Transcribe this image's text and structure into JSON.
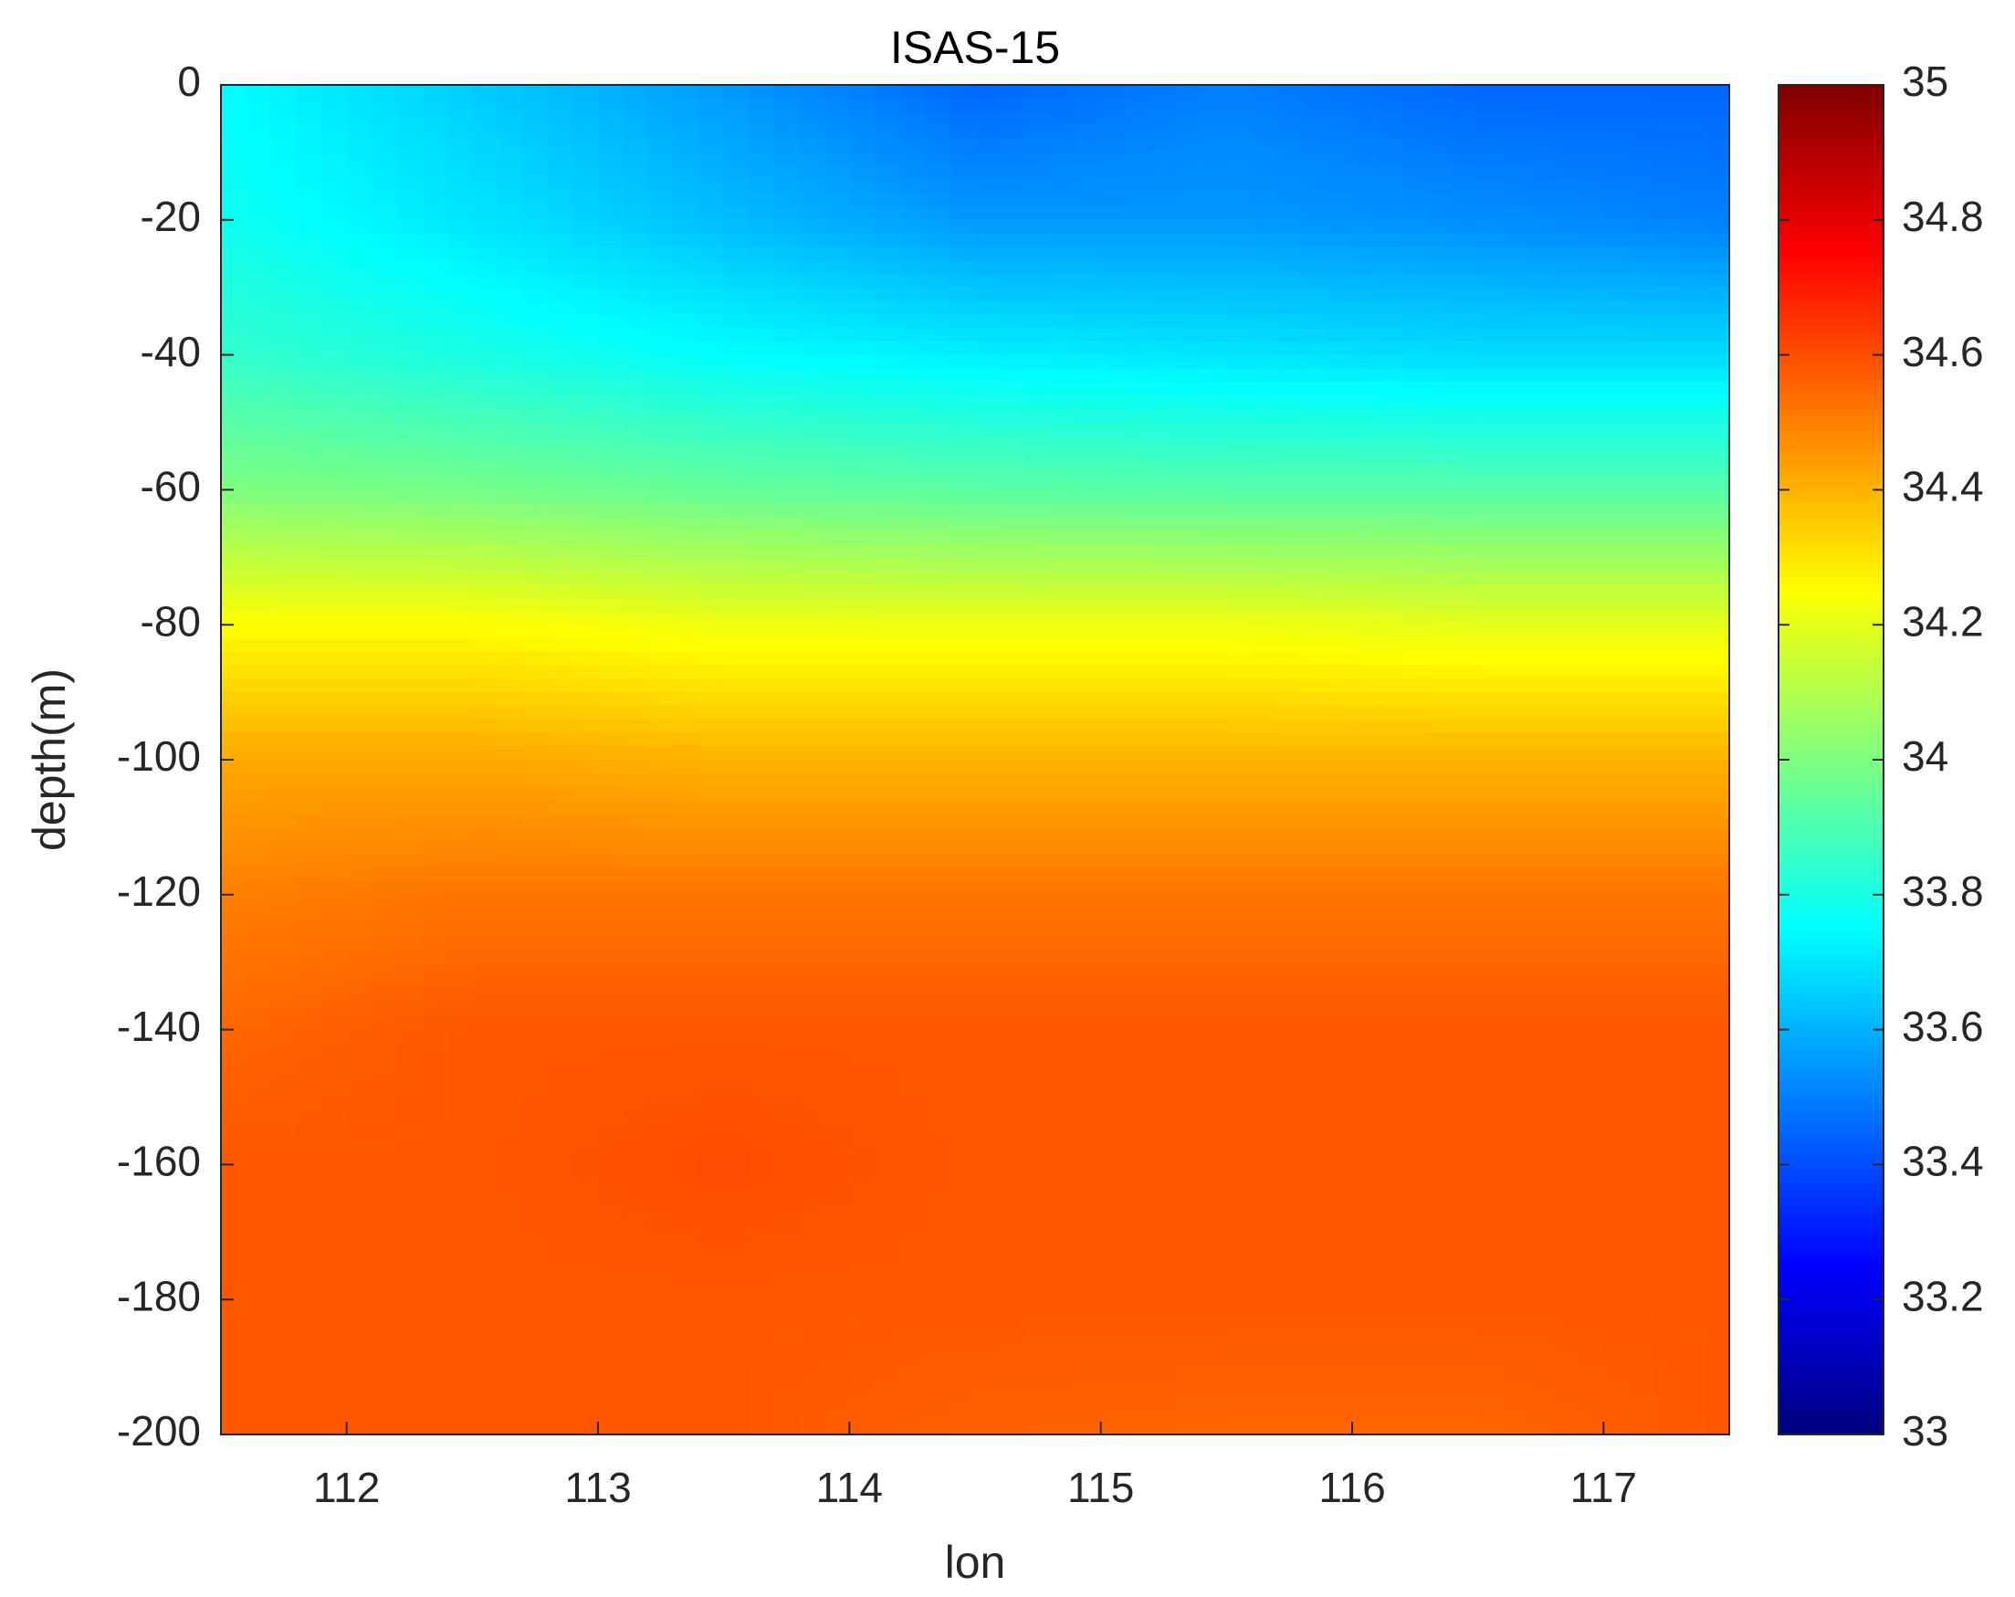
{
  "chart_data": {
    "type": "contour",
    "title": "ISAS-15",
    "x_label": "lon",
    "y_label": "depth(m)",
    "colormap": "jet",
    "x": [
      111.5,
      112.5,
      113.5,
      114.5,
      115.5,
      116.5,
      117.5
    ],
    "y": [
      0,
      -20,
      -40,
      -60,
      -80,
      -100,
      -120,
      -140,
      -160,
      -180,
      -200
    ],
    "z": [
      [
        33.75,
        33.65,
        33.55,
        33.45,
        33.5,
        33.45,
        33.45
      ],
      [
        33.78,
        33.7,
        33.62,
        33.55,
        33.55,
        33.53,
        33.5
      ],
      [
        33.85,
        33.8,
        33.75,
        33.72,
        33.7,
        33.68,
        33.68
      ],
      [
        34.0,
        33.98,
        33.95,
        33.93,
        33.92,
        33.92,
        33.92
      ],
      [
        34.25,
        34.25,
        34.22,
        34.22,
        34.22,
        34.2,
        34.2
      ],
      [
        34.42,
        34.42,
        34.4,
        34.4,
        34.4,
        34.4,
        34.4
      ],
      [
        34.5,
        34.52,
        34.52,
        34.52,
        34.52,
        34.52,
        34.52
      ],
      [
        34.55,
        34.58,
        34.58,
        34.58,
        34.58,
        34.58,
        34.58
      ],
      [
        34.58,
        34.58,
        34.6,
        34.58,
        34.58,
        34.58,
        34.58
      ],
      [
        34.58,
        34.58,
        34.58,
        34.58,
        34.58,
        34.58,
        34.58
      ],
      [
        34.58,
        34.58,
        34.58,
        34.56,
        34.55,
        34.55,
        34.58
      ]
    ],
    "xlim": [
      111.5,
      117.5
    ],
    "xticks": [
      112,
      113,
      114,
      115,
      116,
      117
    ],
    "ylim": [
      -200,
      0
    ],
    "yticks": [
      0,
      -20,
      -40,
      -60,
      -80,
      -100,
      -120,
      -140,
      -160,
      -180,
      -200
    ],
    "clim": [
      33,
      35
    ],
    "cticks": [
      33,
      {
        "value": 33.2,
        "label": "33.2"
      },
      {
        "value": 33.4,
        "label": "33.4"
      },
      {
        "value": 33.6,
        "label": "33.6"
      },
      {
        "value": 33.8,
        "label": "33.8"
      },
      34,
      {
        "value": 34.2,
        "label": "34.2"
      },
      {
        "value": 34.4,
        "label": "34.4"
      },
      {
        "value": 34.6,
        "label": "34.6"
      },
      {
        "value": 34.8,
        "label": "34.8"
      },
      35
    ]
  }
}
